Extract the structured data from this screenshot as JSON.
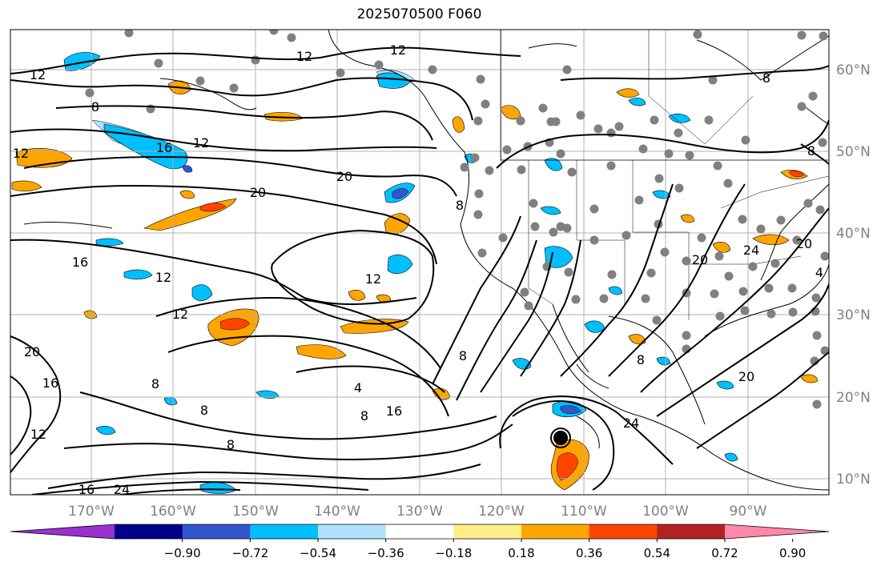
{
  "title": "2025070500 F060",
  "lon_labels": [
    "170°W",
    "160°W",
    "150°W",
    "140°W",
    "130°W",
    "120°W",
    "110°W",
    "100°W",
    "90°W"
  ],
  "lat_labels": [
    "60°N",
    "50°N",
    "40°N",
    "30°N",
    "20°N",
    "10°N"
  ],
  "colorbar": {
    "ticks": [
      "−0.90",
      "−0.72",
      "−0.54",
      "−0.36",
      "−0.18",
      "0.18",
      "0.36",
      "0.54",
      "0.72",
      "0.90"
    ],
    "colors": [
      "#9b30d0",
      "#00008b",
      "#3355cc",
      "#00bfff",
      "#b0e2ff",
      "#ffffff",
      "#ffee88",
      "#ffa500",
      "#ff4400",
      "#b22222",
      "#ff88aa"
    ]
  },
  "contour_labels": [
    {
      "text": "12"
    },
    {
      "text": "12"
    },
    {
      "text": "12"
    },
    {
      "text": "8"
    },
    {
      "text": "8"
    },
    {
      "text": "16"
    },
    {
      "text": "12"
    },
    {
      "text": "20"
    },
    {
      "text": "20"
    },
    {
      "text": "12"
    },
    {
      "text": "8"
    },
    {
      "text": "16"
    },
    {
      "text": "12"
    },
    {
      "text": "12"
    },
    {
      "text": "12"
    },
    {
      "text": "20"
    },
    {
      "text": "16"
    },
    {
      "text": "8"
    },
    {
      "text": "4"
    },
    {
      "text": "8"
    },
    {
      "text": "16"
    },
    {
      "text": "8"
    },
    {
      "text": "8"
    },
    {
      "text": "24"
    },
    {
      "text": "8"
    },
    {
      "text": "20"
    },
    {
      "text": "20"
    },
    {
      "text": "24"
    },
    {
      "text": "20"
    },
    {
      "text": "4"
    },
    {
      "text": "8"
    },
    {
      "text": "12"
    },
    {
      "text": "8"
    },
    {
      "text": "24"
    },
    {
      "text": "16"
    }
  ]
}
